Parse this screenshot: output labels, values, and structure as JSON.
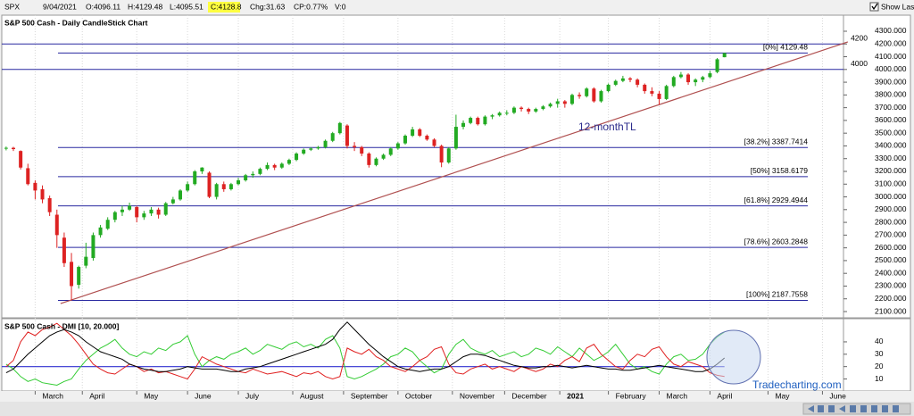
{
  "header": {
    "symbol": "SPX",
    "date": "9/04/2021",
    "open": "O:4096.11",
    "high": "H:4129.48",
    "low": "L:4095.51",
    "close": "C:4128.8",
    "change": "Chg:31.63",
    "change_pct": "CP:0.77%",
    "volume": "V:0",
    "show_last": "Show Last"
  },
  "chart_data": [
    {
      "type": "candlestick",
      "title": "S&P 500 Cash - Daily CandleStick Chart",
      "up_color": "#22aa22",
      "down_color": "#dd2222",
      "ohlc": [
        [
          3380,
          3395,
          3365,
          3385
        ],
        [
          3385,
          3393,
          3360,
          3375
        ],
        [
          3360,
          3365,
          3215,
          3230
        ],
        [
          3225,
          3260,
          3090,
          3100
        ],
        [
          3110,
          3130,
          2980,
          3050
        ],
        [
          3060,
          3090,
          2950,
          2980
        ],
        [
          2990,
          3010,
          2850,
          2880
        ],
        [
          2860,
          2900,
          2600,
          2700
        ],
        [
          2680,
          2720,
          2450,
          2480
        ],
        [
          2490,
          2560,
          2188,
          2300
        ],
        [
          2310,
          2460,
          2280,
          2450
        ],
        [
          2460,
          2640,
          2440,
          2530
        ],
        [
          2520,
          2720,
          2500,
          2700
        ],
        [
          2700,
          2780,
          2680,
          2760
        ],
        [
          2750,
          2840,
          2740,
          2820
        ],
        [
          2820,
          2890,
          2800,
          2880
        ],
        [
          2880,
          2930,
          2850,
          2900
        ],
        [
          2900,
          2955,
          2890,
          2930
        ],
        [
          2920,
          2930,
          2800,
          2840
        ],
        [
          2840,
          2890,
          2820,
          2870
        ],
        [
          2870,
          2920,
          2850,
          2900
        ],
        [
          2900,
          2915,
          2830,
          2860
        ],
        [
          2860,
          2960,
          2850,
          2950
        ],
        [
          2950,
          3000,
          2940,
          2980
        ],
        [
          2980,
          3060,
          2970,
          3050
        ],
        [
          3050,
          3120,
          3040,
          3100
        ],
        [
          3100,
          3210,
          3090,
          3200
        ],
        [
          3200,
          3233,
          3180,
          3230
        ],
        [
          3190,
          3200,
          2990,
          3000
        ],
        [
          3000,
          3110,
          2980,
          3100
        ],
        [
          3100,
          3120,
          3040,
          3060
        ],
        [
          3060,
          3110,
          3050,
          3100
        ],
        [
          3100,
          3150,
          3090,
          3130
        ],
        [
          3130,
          3180,
          3120,
          3170
        ],
        [
          3170,
          3200,
          3150,
          3180
        ],
        [
          3180,
          3230,
          3170,
          3220
        ],
        [
          3220,
          3270,
          3210,
          3250
        ],
        [
          3250,
          3260,
          3210,
          3230
        ],
        [
          3230,
          3270,
          3220,
          3260
        ],
        [
          3260,
          3300,
          3250,
          3290
        ],
        [
          3290,
          3350,
          3280,
          3340
        ],
        [
          3340,
          3380,
          3330,
          3370
        ],
        [
          3370,
          3390,
          3360,
          3380
        ],
        [
          3380,
          3400,
          3370,
          3390
        ],
        [
          3390,
          3450,
          3380,
          3440
        ],
        [
          3440,
          3510,
          3430,
          3500
        ],
        [
          3500,
          3588,
          3490,
          3580
        ],
        [
          3560,
          3570,
          3380,
          3400
        ],
        [
          3400,
          3430,
          3360,
          3390
        ],
        [
          3390,
          3400,
          3320,
          3340
        ],
        [
          3340,
          3350,
          3230,
          3250
        ],
        [
          3250,
          3310,
          3240,
          3300
        ],
        [
          3300,
          3340,
          3290,
          3330
        ],
        [
          3330,
          3390,
          3320,
          3380
        ],
        [
          3380,
          3430,
          3370,
          3420
        ],
        [
          3420,
          3490,
          3410,
          3480
        ],
        [
          3480,
          3550,
          3470,
          3530
        ],
        [
          3530,
          3540,
          3470,
          3480
        ],
        [
          3480,
          3490,
          3440,
          3450
        ],
        [
          3450,
          3460,
          3390,
          3400
        ],
        [
          3400,
          3410,
          3233,
          3270
        ],
        [
          3270,
          3390,
          3260,
          3380
        ],
        [
          3380,
          3645,
          3370,
          3550
        ],
        [
          3550,
          3600,
          3530,
          3580
        ],
        [
          3580,
          3630,
          3570,
          3620
        ],
        [
          3620,
          3630,
          3560,
          3570
        ],
        [
          3570,
          3640,
          3560,
          3630
        ],
        [
          3630,
          3650,
          3610,
          3640
        ],
        [
          3640,
          3670,
          3630,
          3660
        ],
        [
          3660,
          3680,
          3640,
          3660
        ],
        [
          3660,
          3710,
          3650,
          3700
        ],
        [
          3700,
          3710,
          3670,
          3690
        ],
        [
          3690,
          3700,
          3650,
          3670
        ],
        [
          3670,
          3700,
          3660,
          3690
        ],
        [
          3690,
          3720,
          3680,
          3710
        ],
        [
          3710,
          3740,
          3700,
          3730
        ],
        [
          3730,
          3770,
          3700,
          3750
        ],
        [
          3750,
          3760,
          3700,
          3730
        ],
        [
          3730,
          3810,
          3720,
          3800
        ],
        [
          3800,
          3820,
          3770,
          3790
        ],
        [
          3790,
          3860,
          3780,
          3850
        ],
        [
          3850,
          3860,
          3740,
          3750
        ],
        [
          3750,
          3840,
          3740,
          3830
        ],
        [
          3830,
          3890,
          3820,
          3880
        ],
        [
          3880,
          3920,
          3870,
          3910
        ],
        [
          3910,
          3950,
          3900,
          3930
        ],
        [
          3930,
          3940,
          3900,
          3920
        ],
        [
          3920,
          3930,
          3860,
          3880
        ],
        [
          3880,
          3890,
          3810,
          3830
        ],
        [
          3830,
          3860,
          3790,
          3810
        ],
        [
          3810,
          3830,
          3723,
          3768
        ],
        [
          3768,
          3880,
          3760,
          3870
        ],
        [
          3870,
          3950,
          3860,
          3940
        ],
        [
          3940,
          3980,
          3930,
          3960
        ],
        [
          3960,
          3970,
          3880,
          3900
        ],
        [
          3900,
          3930,
          3870,
          3920
        ],
        [
          3920,
          3950,
          3900,
          3940
        ],
        [
          3940,
          3990,
          3930,
          3970
        ],
        [
          3980,
          4090,
          3970,
          4080
        ],
        [
          4096.11,
          4129.48,
          4095.51,
          4128.8
        ]
      ],
      "xlim": [
        -0.6,
        115.4
      ],
      "xticks": [
        {
          "value": 4,
          "label": "March"
        },
        {
          "value": 10.5,
          "label": "April"
        },
        {
          "value": 18,
          "label": "May"
        },
        {
          "value": 25,
          "label": "June"
        },
        {
          "value": 32,
          "label": "July"
        },
        {
          "value": 39.5,
          "label": "August"
        },
        {
          "value": 46.5,
          "label": "September"
        },
        {
          "value": 54,
          "label": "October"
        },
        {
          "value": 61.5,
          "label": "November"
        },
        {
          "value": 68.7,
          "label": "December"
        },
        {
          "value": 76.3,
          "label": "2021",
          "bold": true
        },
        {
          "value": 83,
          "label": "February"
        },
        {
          "value": 90,
          "label": "March"
        },
        {
          "value": 97,
          "label": "April"
        },
        {
          "value": 105,
          "label": "May"
        },
        {
          "value": 112.5,
          "label": "June"
        }
      ],
      "ylim": [
        2051,
        4426
      ],
      "yticks": [
        {
          "value": 2100,
          "label": "2100.000"
        },
        {
          "value": 2200,
          "label": "2200.000"
        },
        {
          "value": 2300,
          "label": "2300.000"
        },
        {
          "value": 2400,
          "label": "2400.000"
        },
        {
          "value": 2500,
          "label": "2500.000"
        },
        {
          "value": 2600,
          "label": "2600.000"
        },
        {
          "value": 2700,
          "label": "2700.000"
        },
        {
          "value": 2800,
          "label": "2800.000"
        },
        {
          "value": 2900,
          "label": "2900.000"
        },
        {
          "value": 3000,
          "label": "3000.000"
        },
        {
          "value": 3100,
          "label": "3100.000"
        },
        {
          "value": 3200,
          "label": "3200.000"
        },
        {
          "value": 3300,
          "label": "3300.000"
        },
        {
          "value": 3400,
          "label": "3400.000"
        },
        {
          "value": 3500,
          "label": "3500.000"
        },
        {
          "value": 3600,
          "label": "3600.000"
        },
        {
          "value": 3700,
          "label": "3700.000"
        },
        {
          "value": 3800,
          "label": "3800.000"
        },
        {
          "value": 3900,
          "label": "3900.000"
        },
        {
          "value": 4000,
          "label": "4000.000"
        },
        {
          "value": 4100,
          "label": "4100.000"
        },
        {
          "value": 4200,
          "label": "4200.000"
        },
        {
          "value": 4300,
          "label": "4300.000"
        }
      ],
      "hlines": [
        4200,
        4000
      ],
      "hline_color": "#2828a0",
      "fib_levels": [
        {
          "value": 4129.48,
          "label": "[0%] 4129.48"
        },
        {
          "value": 3387.7414,
          "label": "[38.2%] 3387.7414"
        },
        {
          "value": 3158.6179,
          "label": "[50%] 3158.6179"
        },
        {
          "value": 2929.4944,
          "label": "[61.8%] 2929.4944"
        },
        {
          "value": 2603.2848,
          "label": "[78.6%] 2603.2848"
        },
        {
          "value": 2187.7558,
          "label": "[100%] 2187.7558"
        }
      ],
      "trendline": {
        "x": [
          7.5,
          116
        ],
        "y": [
          2163,
          4216
        ],
        "color": "#b05050",
        "label": "12-monthTL"
      }
    },
    {
      "type": "line",
      "title": "S&P 500 Cash - DMI [10, 20.000]",
      "xlim": [
        -0.6,
        115.4
      ],
      "ylim": [
        1,
        58
      ],
      "yticks": [
        10,
        20,
        30,
        40
      ],
      "series": [
        {
          "color": "#33cc33",
          "values": [
            22,
            18,
            12,
            8,
            10,
            7,
            6,
            5,
            8,
            10,
            18,
            25,
            30,
            35,
            38,
            42,
            35,
            30,
            28,
            32,
            30,
            35,
            33,
            38,
            40,
            45,
            30,
            20,
            25,
            28,
            26,
            30,
            32,
            35,
            30,
            33,
            38,
            36,
            34,
            38,
            40,
            36,
            38,
            35,
            42,
            45,
            35,
            12,
            10,
            12,
            15,
            18,
            22,
            28,
            30,
            35,
            32,
            25,
            20,
            15,
            18,
            30,
            38,
            42,
            35,
            32,
            30,
            33,
            28,
            30,
            32,
            28,
            30,
            35,
            33,
            30,
            36,
            32,
            28,
            35,
            30,
            25,
            28,
            32,
            38,
            30,
            22,
            18,
            20,
            16,
            14,
            22,
            28,
            30,
            25,
            26,
            30,
            38,
            44,
            48
          ]
        },
        {
          "color": "#e02020",
          "values": [
            20,
            25,
            40,
            48,
            45,
            50,
            52,
            55,
            50,
            45,
            38,
            30,
            22,
            18,
            15,
            14,
            18,
            22,
            20,
            16,
            18,
            15,
            16,
            14,
            12,
            10,
            18,
            28,
            25,
            22,
            20,
            18,
            16,
            15,
            18,
            16,
            14,
            15,
            16,
            14,
            12,
            15,
            14,
            16,
            12,
            10,
            12,
            35,
            32,
            30,
            34,
            28,
            25,
            20,
            18,
            16,
            20,
            25,
            28,
            34,
            36,
            22,
            15,
            14,
            18,
            20,
            22,
            18,
            20,
            18,
            16,
            20,
            18,
            16,
            18,
            22,
            20,
            25,
            28,
            24,
            35,
            38,
            30,
            25,
            20,
            18,
            25,
            30,
            28,
            34,
            36,
            28,
            22,
            20,
            24,
            22,
            20,
            15,
            13,
            12
          ]
        },
        {
          "color": "#000000",
          "values": [
            15,
            18,
            24,
            30,
            35,
            40,
            45,
            48,
            50,
            48,
            45,
            40,
            36,
            32,
            30,
            28,
            26,
            22,
            20,
            18,
            17,
            16,
            16,
            17,
            18,
            20,
            19,
            18,
            18,
            18,
            17,
            16,
            16,
            18,
            19,
            20,
            22,
            24,
            26,
            28,
            30,
            32,
            34,
            36,
            38,
            42,
            50,
            56,
            50,
            44,
            38,
            33,
            28,
            24,
            20,
            18,
            17,
            16,
            17,
            18,
            18,
            20,
            24,
            28,
            30,
            30,
            29,
            27,
            25,
            23,
            21,
            20,
            19,
            19,
            20,
            20,
            21,
            20,
            19,
            20,
            21,
            20,
            19,
            18,
            18,
            17,
            17,
            18,
            19,
            20,
            21,
            20,
            19,
            18,
            17,
            16,
            16,
            18,
            22,
            27
          ]
        }
      ],
      "threshold": 20,
      "threshold_color": "#3030d0"
    }
  ],
  "watermark": "Tradecharting.com"
}
